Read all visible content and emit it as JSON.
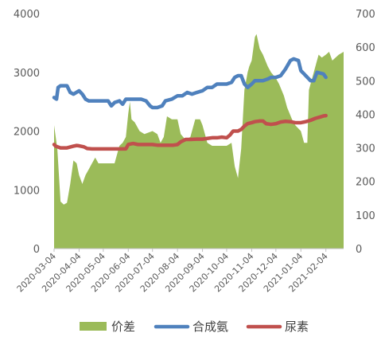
{
  "chart_data": {
    "type": "area+line",
    "title": "",
    "x_ticks": [
      "2020-03-04",
      "2020-04-04",
      "2020-05-04",
      "2020-06-04",
      "2020-07-04",
      "2020-08-04",
      "2020-09-04",
      "2020-10-04",
      "2020-11-04",
      "2020-12-04",
      "2021-01-04",
      "2021-02-04"
    ],
    "y_left": {
      "ticks": [
        "0",
        "1000",
        "2000",
        "3000",
        "4000"
      ],
      "range": [
        0,
        4000
      ]
    },
    "y_right": {
      "ticks": [
        "0",
        "100",
        "200",
        "300",
        "400",
        "500",
        "600",
        "700"
      ],
      "range": [
        0,
        700
      ]
    },
    "x_range": [
      "2020-03-04",
      "2021-02-26"
    ],
    "grid": false,
    "legend_position": "bottom",
    "series": [
      {
        "name": "价差",
        "type": "area",
        "axis": "left",
        "color": "#9BBB59",
        "points": [
          [
            "2020-03-04",
            2100
          ],
          [
            "2020-03-08",
            1700
          ],
          [
            "2020-03-12",
            800
          ],
          [
            "2020-03-16",
            750
          ],
          [
            "2020-03-20",
            780
          ],
          [
            "2020-03-24",
            1100
          ],
          [
            "2020-03-28",
            1500
          ],
          [
            "2020-04-01",
            1450
          ],
          [
            "2020-04-04",
            1250
          ],
          [
            "2020-04-08",
            1100
          ],
          [
            "2020-04-12",
            1250
          ],
          [
            "2020-04-16",
            1350
          ],
          [
            "2020-04-20",
            1450
          ],
          [
            "2020-04-24",
            1550
          ],
          [
            "2020-04-28",
            1450
          ],
          [
            "2020-05-04",
            1450
          ],
          [
            "2020-05-10",
            1450
          ],
          [
            "2020-05-18",
            1450
          ],
          [
            "2020-05-24",
            1750
          ],
          [
            "2020-05-28",
            1800
          ],
          [
            "2020-06-01",
            1900
          ],
          [
            "2020-06-04",
            2300
          ],
          [
            "2020-06-06",
            2500
          ],
          [
            "2020-06-08",
            2200
          ],
          [
            "2020-06-12",
            2150
          ],
          [
            "2020-06-18",
            2000
          ],
          [
            "2020-06-24",
            1950
          ],
          [
            "2020-07-04",
            2000
          ],
          [
            "2020-07-10",
            1950
          ],
          [
            "2020-07-14",
            1800
          ],
          [
            "2020-07-18",
            1900
          ],
          [
            "2020-07-22",
            2250
          ],
          [
            "2020-07-28",
            2200
          ],
          [
            "2020-08-04",
            2200
          ],
          [
            "2020-08-08",
            1950
          ],
          [
            "2020-08-14",
            1850
          ],
          [
            "2020-08-20",
            1900
          ],
          [
            "2020-08-26",
            2200
          ],
          [
            "2020-09-01",
            2200
          ],
          [
            "2020-09-04",
            2100
          ],
          [
            "2020-09-10",
            1800
          ],
          [
            "2020-09-16",
            1750
          ],
          [
            "2020-09-22",
            1750
          ],
          [
            "2020-09-28",
            1750
          ],
          [
            "2020-10-04",
            1750
          ],
          [
            "2020-10-10",
            1800
          ],
          [
            "2020-10-14",
            1400
          ],
          [
            "2020-10-18",
            1200
          ],
          [
            "2020-10-22",
            1700
          ],
          [
            "2020-10-26",
            2700
          ],
          [
            "2020-10-30",
            3000
          ],
          [
            "2020-11-01",
            3100
          ],
          [
            "2020-11-04",
            3200
          ],
          [
            "2020-11-08",
            3600
          ],
          [
            "2020-11-10",
            3650
          ],
          [
            "2020-11-14",
            3400
          ],
          [
            "2020-11-18",
            3300
          ],
          [
            "2020-11-24",
            3100
          ],
          [
            "2020-11-28",
            3000
          ],
          [
            "2020-12-04",
            2900
          ],
          [
            "2020-12-08",
            2800
          ],
          [
            "2020-12-14",
            2600
          ],
          [
            "2020-12-18",
            2400
          ],
          [
            "2020-12-24",
            2200
          ],
          [
            "2020-12-28",
            2100
          ],
          [
            "2021-01-04",
            2000
          ],
          [
            "2021-01-08",
            1800
          ],
          [
            "2021-01-12",
            1800
          ],
          [
            "2021-01-14",
            2700
          ],
          [
            "2021-01-18",
            2900
          ],
          [
            "2021-01-22",
            3100
          ],
          [
            "2021-01-26",
            3300
          ],
          [
            "2021-01-30",
            3250
          ],
          [
            "2021-02-04",
            3300
          ],
          [
            "2021-02-08",
            3350
          ],
          [
            "2021-02-12",
            3200
          ],
          [
            "2021-02-16",
            3250
          ],
          [
            "2021-02-20",
            3300
          ],
          [
            "2021-02-26",
            3350
          ]
        ]
      },
      {
        "name": "合成氨",
        "type": "line",
        "axis": "right",
        "color": "#4F81BD",
        "points": [
          [
            "2020-03-04",
            450
          ],
          [
            "2020-03-07",
            445
          ],
          [
            "2020-03-09",
            480
          ],
          [
            "2020-03-12",
            485
          ],
          [
            "2020-03-20",
            485
          ],
          [
            "2020-03-24",
            465
          ],
          [
            "2020-03-28",
            460
          ],
          [
            "2020-04-04",
            470
          ],
          [
            "2020-04-08",
            460
          ],
          [
            "2020-04-12",
            445
          ],
          [
            "2020-04-16",
            440
          ],
          [
            "2020-04-20",
            440
          ],
          [
            "2020-04-28",
            440
          ],
          [
            "2020-05-04",
            440
          ],
          [
            "2020-05-10",
            440
          ],
          [
            "2020-05-14",
            425
          ],
          [
            "2020-05-18",
            435
          ],
          [
            "2020-05-24",
            440
          ],
          [
            "2020-05-28",
            430
          ],
          [
            "2020-06-01",
            445
          ],
          [
            "2020-06-04",
            445
          ],
          [
            "2020-06-08",
            445
          ],
          [
            "2020-06-12",
            445
          ],
          [
            "2020-06-20",
            445
          ],
          [
            "2020-06-26",
            440
          ],
          [
            "2020-07-01",
            425
          ],
          [
            "2020-07-04",
            420
          ],
          [
            "2020-07-10",
            420
          ],
          [
            "2020-07-16",
            425
          ],
          [
            "2020-07-20",
            440
          ],
          [
            "2020-07-28",
            445
          ],
          [
            "2020-08-04",
            455
          ],
          [
            "2020-08-10",
            455
          ],
          [
            "2020-08-16",
            465
          ],
          [
            "2020-08-22",
            460
          ],
          [
            "2020-08-28",
            465
          ],
          [
            "2020-09-04",
            470
          ],
          [
            "2020-09-10",
            480
          ],
          [
            "2020-09-16",
            480
          ],
          [
            "2020-09-22",
            490
          ],
          [
            "2020-09-28",
            490
          ],
          [
            "2020-10-04",
            490
          ],
          [
            "2020-10-10",
            495
          ],
          [
            "2020-10-14",
            510
          ],
          [
            "2020-10-18",
            515
          ],
          [
            "2020-10-22",
            515
          ],
          [
            "2020-10-26",
            490
          ],
          [
            "2020-10-30",
            480
          ],
          [
            "2020-11-04",
            490
          ],
          [
            "2020-11-08",
            500
          ],
          [
            "2020-11-14",
            500
          ],
          [
            "2020-11-18",
            500
          ],
          [
            "2020-11-24",
            505
          ],
          [
            "2020-11-28",
            510
          ],
          [
            "2020-12-04",
            510
          ],
          [
            "2020-12-10",
            515
          ],
          [
            "2020-12-16",
            535
          ],
          [
            "2020-12-22",
            560
          ],
          [
            "2020-12-26",
            565
          ],
          [
            "2021-01-01",
            560
          ],
          [
            "2021-01-04",
            530
          ],
          [
            "2021-01-08",
            520
          ],
          [
            "2021-01-12",
            510
          ],
          [
            "2021-01-16",
            500
          ],
          [
            "2021-01-20",
            500
          ],
          [
            "2021-01-24",
            525
          ],
          [
            "2021-02-01",
            520
          ],
          [
            "2021-02-04",
            510
          ]
        ]
      },
      {
        "name": "尿素",
        "type": "line",
        "axis": "right",
        "color": "#C0504D",
        "points": [
          [
            "2020-03-04",
            310
          ],
          [
            "2020-03-06",
            305
          ],
          [
            "2020-03-12",
            300
          ],
          [
            "2020-03-20",
            300
          ],
          [
            "2020-03-28",
            305
          ],
          [
            "2020-04-01",
            307
          ],
          [
            "2020-04-04",
            306
          ],
          [
            "2020-04-10",
            303
          ],
          [
            "2020-04-14",
            298
          ],
          [
            "2020-04-20",
            297
          ],
          [
            "2020-05-04",
            297
          ],
          [
            "2020-05-14",
            297
          ],
          [
            "2020-05-24",
            297
          ],
          [
            "2020-06-01",
            297
          ],
          [
            "2020-06-04",
            310
          ],
          [
            "2020-06-10",
            313
          ],
          [
            "2020-06-16",
            310
          ],
          [
            "2020-06-22",
            310
          ],
          [
            "2020-06-28",
            310
          ],
          [
            "2020-07-04",
            310
          ],
          [
            "2020-07-10",
            308
          ],
          [
            "2020-07-16",
            308
          ],
          [
            "2020-07-24",
            308
          ],
          [
            "2020-07-30",
            308
          ],
          [
            "2020-08-04",
            310
          ],
          [
            "2020-08-08",
            318
          ],
          [
            "2020-08-14",
            325
          ],
          [
            "2020-08-20",
            325
          ],
          [
            "2020-08-28",
            326
          ],
          [
            "2020-09-04",
            326
          ],
          [
            "2020-09-10",
            328
          ],
          [
            "2020-09-16",
            330
          ],
          [
            "2020-09-22",
            330
          ],
          [
            "2020-09-28",
            332
          ],
          [
            "2020-10-04",
            330
          ],
          [
            "2020-10-08",
            338
          ],
          [
            "2020-10-12",
            350
          ],
          [
            "2020-10-18",
            350
          ],
          [
            "2020-10-22",
            355
          ],
          [
            "2020-10-26",
            365
          ],
          [
            "2020-10-30",
            372
          ],
          [
            "2020-11-04",
            375
          ],
          [
            "2020-11-08",
            378
          ],
          [
            "2020-11-14",
            380
          ],
          [
            "2020-11-18",
            380
          ],
          [
            "2020-11-22",
            372
          ],
          [
            "2020-11-28",
            370
          ],
          [
            "2020-12-04",
            372
          ],
          [
            "2020-12-10",
            377
          ],
          [
            "2020-12-16",
            379
          ],
          [
            "2020-12-22",
            378
          ],
          [
            "2020-12-28",
            375
          ],
          [
            "2021-01-04",
            375
          ],
          [
            "2021-01-10",
            378
          ],
          [
            "2021-01-16",
            382
          ],
          [
            "2021-01-22",
            388
          ],
          [
            "2021-01-28",
            392
          ],
          [
            "2021-02-01",
            395
          ],
          [
            "2021-02-04",
            396
          ]
        ]
      }
    ]
  }
}
